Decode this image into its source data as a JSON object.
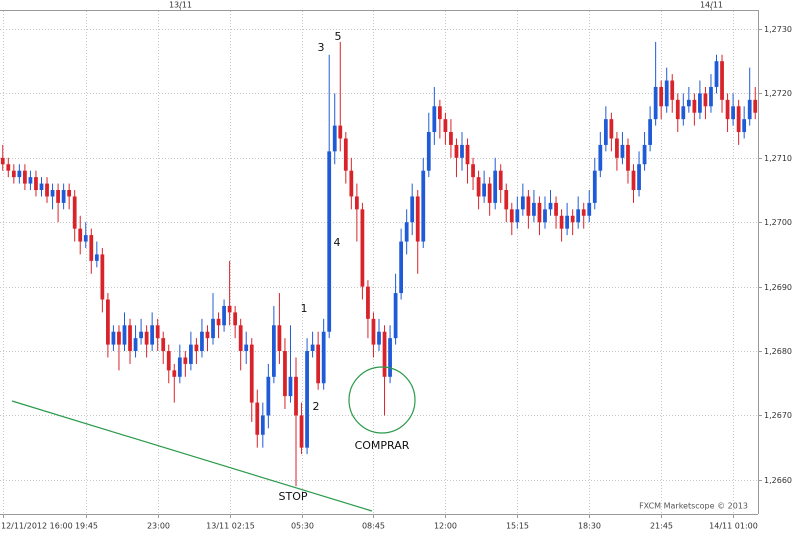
{
  "chart_data": {
    "type": "candlestick",
    "up_color": "#1f5bd6",
    "down_color": "#d8232a",
    "grid": true,
    "open": [
      1.271,
      1.2709,
      1.2708,
      1.2707,
      1.2708,
      1.2706,
      1.2707,
      1.2705,
      1.2706,
      1.2704,
      1.2705,
      1.2703,
      1.2705,
      1.2704,
      1.2699,
      1.2697,
      1.2698,
      1.2694,
      1.2695,
      1.2688,
      1.2681,
      1.2683,
      1.2681,
      1.2684,
      1.268,
      1.2682,
      1.2683,
      1.2681,
      1.2684,
      1.2682,
      1.268,
      1.2677,
      1.2676,
      1.2679,
      1.2678,
      1.2681,
      1.268,
      1.2683,
      1.2682,
      1.2685,
      1.2684,
      1.2687,
      1.2686,
      1.2684,
      1.268,
      1.2681,
      1.2672,
      1.2667,
      1.267,
      1.2676,
      1.2684,
      1.268,
      1.2673,
      1.2676,
      1.267,
      1.2665,
      1.268,
      1.2681,
      1.2675,
      1.2683,
      1.2711,
      1.2715,
      1.2713,
      1.2708,
      1.2704,
      1.2702,
      1.269,
      1.2685,
      1.2681,
      1.2683,
      1.2676,
      1.2682,
      1.2689,
      1.2697,
      1.27,
      1.2704,
      1.2697,
      1.2708,
      1.2714,
      1.2718,
      1.2716,
      1.2714,
      1.2712,
      1.271,
      1.2712,
      1.2709,
      1.2707,
      1.2704,
      1.2706,
      1.2703,
      1.2708,
      1.2705,
      1.2702,
      1.27,
      1.2702,
      1.2704,
      1.2701,
      1.2703,
      1.27,
      1.2702,
      1.2703,
      1.2701,
      1.2699,
      1.2701,
      1.27,
      1.2702,
      1.2701,
      1.2703,
      1.2708,
      1.2712,
      1.2716,
      1.2713,
      1.271,
      1.2712,
      1.2708,
      1.2705,
      1.2709,
      1.2712,
      1.2716,
      1.2721,
      1.2718,
      1.2722,
      1.2719,
      1.2716,
      1.2718,
      1.2719,
      1.2717,
      1.272,
      1.2718,
      1.2721,
      1.2725,
      1.2719,
      1.2716,
      1.2718,
      1.2714,
      1.2716,
      1.2719
    ],
    "high": [
      1.2712,
      1.271,
      1.2709,
      1.2709,
      1.2709,
      1.2708,
      1.2708,
      1.2707,
      1.2707,
      1.2706,
      1.2706,
      1.2706,
      1.2706,
      1.2705,
      1.2701,
      1.27,
      1.2699,
      1.2697,
      1.2696,
      1.2689,
      1.2684,
      1.2684,
      1.2686,
      1.2685,
      1.2684,
      1.2685,
      1.2684,
      1.2686,
      1.2685,
      1.2683,
      1.2681,
      1.2678,
      1.2681,
      1.268,
      1.2683,
      1.2682,
      1.2685,
      1.2684,
      1.2689,
      1.2686,
      1.2688,
      1.2694,
      1.2687,
      1.2685,
      1.2683,
      1.2682,
      1.2674,
      1.2672,
      1.2678,
      1.2687,
      1.2689,
      1.2682,
      1.2684,
      1.2679,
      1.2672,
      1.2682,
      1.2683,
      1.2683,
      1.2685,
      1.2726,
      1.272,
      1.2728,
      1.2714,
      1.271,
      1.2706,
      1.2703,
      1.2691,
      1.2686,
      1.2685,
      1.2684,
      1.2684,
      1.2692,
      1.2699,
      1.2702,
      1.2706,
      1.2705,
      1.271,
      1.2717,
      1.2721,
      1.2719,
      1.2717,
      1.2716,
      1.2713,
      1.2714,
      1.2713,
      1.271,
      1.2708,
      1.2708,
      1.2707,
      1.271,
      1.2709,
      1.2706,
      1.2703,
      1.2704,
      1.2706,
      1.2705,
      1.2705,
      1.2704,
      1.2704,
      1.2705,
      1.2704,
      1.2702,
      1.2703,
      1.2702,
      1.2704,
      1.2703,
      1.2705,
      1.271,
      1.2714,
      1.2718,
      1.2717,
      1.2714,
      1.2714,
      1.2713,
      1.2709,
      1.2711,
      1.2714,
      1.2718,
      1.2728,
      1.2722,
      1.2724,
      1.2723,
      1.272,
      1.272,
      1.2721,
      1.272,
      1.2722,
      1.2721,
      1.2723,
      1.2726,
      1.2726,
      1.272,
      1.272,
      1.2719,
      1.2718,
      1.2724,
      1.2721
    ],
    "low": [
      1.2708,
      1.2707,
      1.2706,
      1.2706,
      1.2705,
      1.2705,
      1.2704,
      1.2704,
      1.2703,
      1.2702,
      1.27,
      1.2702,
      1.2702,
      1.2697,
      1.2695,
      1.2696,
      1.2692,
      1.2693,
      1.2686,
      1.2679,
      1.268,
      1.2677,
      1.268,
      1.2678,
      1.2679,
      1.2681,
      1.2679,
      1.268,
      1.268,
      1.2678,
      1.2675,
      1.2672,
      1.2675,
      1.2676,
      1.2677,
      1.2678,
      1.2679,
      1.268,
      1.2681,
      1.2682,
      1.2683,
      1.2684,
      1.2682,
      1.2677,
      1.2678,
      1.2669,
      1.2665,
      1.2665,
      1.2668,
      1.2675,
      1.2678,
      1.2671,
      1.2672,
      1.2659,
      1.2664,
      1.2664,
      1.2679,
      1.2674,
      1.2674,
      1.2682,
      1.2709,
      1.2711,
      1.2706,
      1.2702,
      1.2697,
      1.2688,
      1.2682,
      1.2679,
      1.268,
      1.267,
      1.2675,
      1.2681,
      1.2688,
      1.2695,
      1.2698,
      1.2692,
      1.2696,
      1.2707,
      1.2712,
      1.2713,
      1.2712,
      1.271,
      1.2707,
      1.2708,
      1.2706,
      1.2705,
      1.2702,
      1.2703,
      1.2701,
      1.2702,
      1.2703,
      1.27,
      1.2698,
      1.2699,
      1.2701,
      1.2699,
      1.27,
      1.2698,
      1.2699,
      1.2701,
      1.2699,
      1.2697,
      1.2698,
      1.2698,
      1.2699,
      1.2699,
      1.27,
      1.2702,
      1.2707,
      1.2711,
      1.2711,
      1.2708,
      1.2709,
      1.2706,
      1.2703,
      1.2704,
      1.2708,
      1.2711,
      1.2715,
      1.2716,
      1.2717,
      1.2717,
      1.2714,
      1.2715,
      1.2717,
      1.2715,
      1.2716,
      1.2716,
      1.2717,
      1.272,
      1.2717,
      1.2714,
      1.2715,
      1.2712,
      1.2713,
      1.2715,
      1.2716
    ],
    "close": [
      1.2709,
      1.2708,
      1.2707,
      1.2708,
      1.2706,
      1.2707,
      1.2705,
      1.2706,
      1.2704,
      1.2705,
      1.2703,
      1.2705,
      1.2704,
      1.2699,
      1.2697,
      1.2698,
      1.2694,
      1.2695,
      1.2688,
      1.2681,
      1.2683,
      1.2681,
      1.2684,
      1.268,
      1.2682,
      1.2683,
      1.2681,
      1.2684,
      1.2682,
      1.268,
      1.2677,
      1.2676,
      1.2679,
      1.2678,
      1.2681,
      1.268,
      1.2683,
      1.2682,
      1.2685,
      1.2684,
      1.2687,
      1.2686,
      1.2684,
      1.268,
      1.2681,
      1.2672,
      1.2667,
      1.267,
      1.2676,
      1.2684,
      1.268,
      1.2673,
      1.2676,
      1.267,
      1.2665,
      1.268,
      1.2681,
      1.2675,
      1.2683,
      1.2711,
      1.2715,
      1.2713,
      1.2708,
      1.2704,
      1.2702,
      1.269,
      1.2685,
      1.2681,
      1.2683,
      1.2676,
      1.2682,
      1.2689,
      1.2697,
      1.27,
      1.2704,
      1.2697,
      1.2708,
      1.2714,
      1.2718,
      1.2716,
      1.2714,
      1.2712,
      1.271,
      1.2712,
      1.2709,
      1.2707,
      1.2704,
      1.2706,
      1.2703,
      1.2708,
      1.2705,
      1.2702,
      1.27,
      1.2702,
      1.2704,
      1.2701,
      1.2703,
      1.27,
      1.2702,
      1.2703,
      1.2701,
      1.2699,
      1.2701,
      1.27,
      1.2702,
      1.2701,
      1.2703,
      1.2708,
      1.2712,
      1.2716,
      1.2713,
      1.271,
      1.2712,
      1.2708,
      1.2705,
      1.2709,
      1.2712,
      1.2716,
      1.2721,
      1.2718,
      1.2722,
      1.2719,
      1.2716,
      1.2718,
      1.2719,
      1.2717,
      1.272,
      1.2718,
      1.2721,
      1.2725,
      1.2719,
      1.2716,
      1.2718,
      1.2714,
      1.2716,
      1.2719,
      1.2717
    ],
    "xlim": [
      -0.5,
      136.5
    ],
    "xticks": [
      {
        "value": 0,
        "label": "12/11/2012 16:00"
      },
      {
        "value": 15,
        "label": "19:45"
      },
      {
        "value": 28,
        "label": "23:00"
      },
      {
        "value": 41,
        "label": "13/11 02:15"
      },
      {
        "value": 54,
        "label": "05:30"
      },
      {
        "value": 67,
        "label": "08:45"
      },
      {
        "value": 80,
        "label": "12:00"
      },
      {
        "value": 93,
        "label": "15:15"
      },
      {
        "value": 106,
        "label": "18:30"
      },
      {
        "value": 119,
        "label": "21:45"
      },
      {
        "value": 132,
        "label": "14/11 01:00"
      }
    ],
    "top_xticks": [
      {
        "value": 32,
        "label": "13/11"
      },
      {
        "value": 128,
        "label": "14/11"
      }
    ],
    "ylim": [
      1.26547,
      1.27345
    ],
    "yticks": [
      {
        "value": 1.266,
        "label": "1,2660"
      },
      {
        "value": 1.267,
        "label": "1,2670"
      },
      {
        "value": 1.268,
        "label": "1,2680"
      },
      {
        "value": 1.269,
        "label": "1,2690"
      },
      {
        "value": 1.27,
        "label": "1,2700"
      },
      {
        "value": 1.271,
        "label": "1,2710"
      },
      {
        "value": 1.272,
        "label": "1,2720"
      },
      {
        "value": 1.273,
        "label": "1,2730"
      }
    ],
    "annotations": [
      "1",
      "2",
      "3",
      "4",
      "5",
      "STOP",
      "COMPRAR"
    ],
    "watermark": "FXCM Marketscope © 2013"
  }
}
